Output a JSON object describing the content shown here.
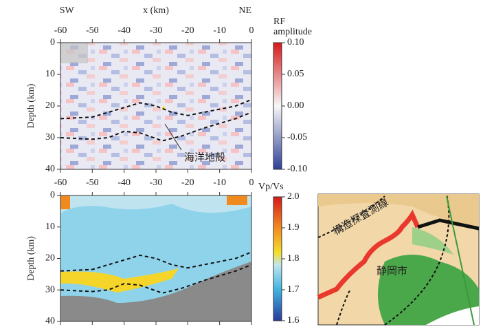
{
  "panels": [
    {
      "left_label": "SW",
      "right_label": "NE",
      "x_axis_label": "x (km)",
      "y_axis_label": "Depth (km)",
      "xlim": [
        -60,
        0
      ],
      "xticks": [
        -60,
        -50,
        -40,
        -30,
        -20,
        -10,
        0
      ],
      "ylim": [
        0,
        40
      ],
      "yticks": [
        0,
        10,
        20,
        30,
        40
      ],
      "colorbar": {
        "label": [
          "RF",
          "amplitude"
        ],
        "lim": [
          -0.1,
          0.1
        ],
        "ticks": [
          {
            "value": 0.1,
            "label": "0.10"
          },
          {
            "value": 0.05,
            "label": "0.05"
          },
          {
            "value": 0,
            "label": "0.00"
          },
          {
            "value": -0.05,
            "label": "-0.05"
          },
          {
            "value": -0.1,
            "label": "-0.10"
          }
        ]
      },
      "annotation": "海洋地殻",
      "boundaries": [
        {
          "x": [
            -60,
            -50,
            -45,
            -35,
            -30,
            -25,
            -20,
            -15,
            -5,
            0
          ],
          "y": [
            24,
            23.5,
            22,
            19,
            20,
            22,
            23,
            22,
            20,
            18
          ]
        },
        {
          "x": [
            -60,
            -50,
            -45,
            -40,
            -35,
            -28,
            -22,
            -15,
            -5,
            0
          ],
          "y": [
            30,
            30.5,
            30,
            28,
            28.5,
            31,
            29.5,
            27,
            24,
            22
          ]
        }
      ]
    },
    {
      "y_axis_label": "Depth (km)",
      "xlim": [
        -60,
        0
      ],
      "xticks": [
        -60,
        -50,
        -40,
        -30,
        -20,
        -10,
        0
      ],
      "ylim": [
        0,
        40
      ],
      "yticks": [
        0,
        10,
        20,
        30,
        40
      ],
      "colorbar": {
        "label": [
          "Vp/Vs"
        ],
        "lim": [
          1.6,
          2.0
        ],
        "ticks": [
          {
            "value": 2.0,
            "label": "2.0"
          },
          1.9,
          1.8,
          1.7,
          1.6
        ]
      },
      "boundaries": [
        {
          "x": [
            -60,
            -50,
            -45,
            -35,
            -30,
            -25,
            -20,
            -15,
            -5,
            0
          ],
          "y": [
            24,
            23.5,
            22,
            19,
            20,
            22,
            23,
            22,
            20,
            18
          ]
        },
        {
          "x": [
            -60,
            -50,
            -45,
            -40,
            -35,
            -28,
            -22,
            -15,
            -5,
            0
          ],
          "y": [
            30,
            30.5,
            30,
            28,
            28.5,
            31,
            29.5,
            27,
            24,
            22
          ]
        }
      ]
    }
  ],
  "map": {
    "line_label": "構造探査測線",
    "city_label": "静岡市"
  }
}
